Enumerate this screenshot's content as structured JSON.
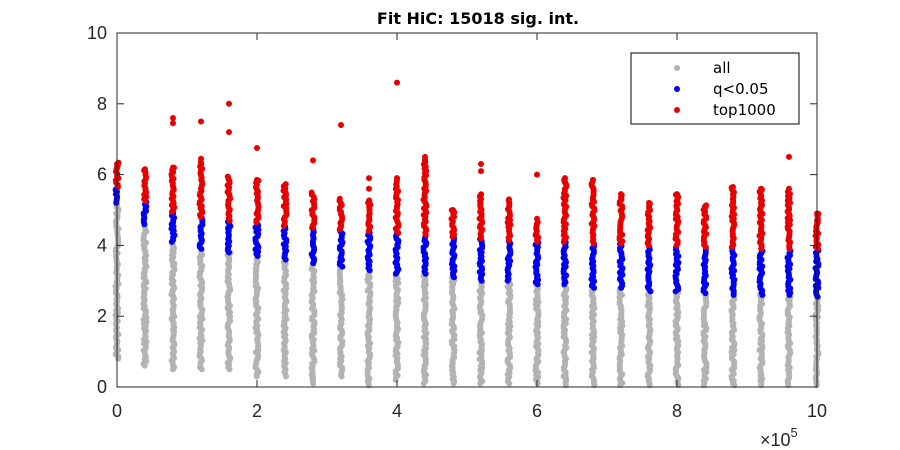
{
  "chart_data": {
    "type": "scatter",
    "title": "Fit HiC: 15018 sig. int.",
    "xlabel": "",
    "ylabel": "",
    "xlim": [
      0,
      1000000
    ],
    "ylim": [
      0,
      10
    ],
    "x_exponent_label": {
      "base": "×10",
      "exponent": "5"
    },
    "xticks": [
      0,
      200000,
      400000,
      600000,
      800000,
      1000000
    ],
    "xtick_labels": [
      "0",
      "2",
      "4",
      "6",
      "8",
      "10"
    ],
    "yticks": [
      0,
      2,
      4,
      6,
      8,
      10
    ],
    "ytick_labels": [
      "0",
      "2",
      "4",
      "6",
      "8",
      "10"
    ],
    "grid": false,
    "legend_position": "top-right",
    "x_positions": [
      0,
      40000,
      80000,
      120000,
      160000,
      200000,
      240000,
      280000,
      320000,
      360000,
      400000,
      440000,
      480000,
      520000,
      560000,
      600000,
      640000,
      680000,
      720000,
      760000,
      800000,
      840000,
      880000,
      920000,
      960000,
      1000000
    ],
    "series": [
      {
        "name": "all",
        "color": "#b3b3b3",
        "column_ranges": [
          [
            0.8,
            5.2
          ],
          [
            0.6,
            4.6
          ],
          [
            0.5,
            4.1
          ],
          [
            0.5,
            3.9
          ],
          [
            0.5,
            3.8
          ],
          [
            0.3,
            3.7
          ],
          [
            0.3,
            3.6
          ],
          [
            0.1,
            3.5
          ],
          [
            0.3,
            3.4
          ],
          [
            0.05,
            3.3
          ],
          [
            0.2,
            3.2
          ],
          [
            0.1,
            3.2
          ],
          [
            0.1,
            3.1
          ],
          [
            0.1,
            3.0
          ],
          [
            0.1,
            3.0
          ],
          [
            0.1,
            2.9
          ],
          [
            0.05,
            2.9
          ],
          [
            0.05,
            2.8
          ],
          [
            0.05,
            2.8
          ],
          [
            0.05,
            2.7
          ],
          [
            0.05,
            2.7
          ],
          [
            0.05,
            2.65
          ],
          [
            0.05,
            2.6
          ],
          [
            0.05,
            2.6
          ],
          [
            0.05,
            2.6
          ],
          [
            0.05,
            2.55
          ]
        ]
      },
      {
        "name": "q<0.05",
        "color": "#0000ee",
        "column_ranges": [
          [
            5.2,
            5.65
          ],
          [
            4.6,
            5.25
          ],
          [
            4.1,
            4.95
          ],
          [
            3.9,
            4.8
          ],
          [
            3.8,
            4.7
          ],
          [
            3.7,
            4.65
          ],
          [
            3.6,
            4.55
          ],
          [
            3.5,
            4.5
          ],
          [
            3.4,
            4.45
          ],
          [
            3.3,
            4.4
          ],
          [
            3.2,
            4.35
          ],
          [
            3.2,
            4.3
          ],
          [
            3.1,
            4.25
          ],
          [
            3.0,
            4.2
          ],
          [
            3.0,
            4.15
          ],
          [
            2.9,
            4.1
          ],
          [
            2.9,
            4.1
          ],
          [
            2.8,
            4.05
          ],
          [
            2.8,
            4.05
          ],
          [
            2.7,
            4.0
          ],
          [
            2.7,
            4.0
          ],
          [
            2.65,
            3.95
          ],
          [
            2.6,
            3.95
          ],
          [
            2.6,
            3.9
          ],
          [
            2.6,
            3.9
          ],
          [
            2.55,
            3.9
          ]
        ]
      },
      {
        "name": "top1000",
        "color": "#e60000",
        "column_ranges": [
          [
            5.65,
            6.35
          ],
          [
            5.25,
            6.15
          ],
          [
            4.95,
            6.2
          ],
          [
            4.8,
            6.4
          ],
          [
            4.7,
            5.95
          ],
          [
            4.65,
            5.85
          ],
          [
            4.55,
            5.75
          ],
          [
            4.5,
            5.5
          ],
          [
            4.45,
            5.35
          ],
          [
            4.4,
            5.3
          ],
          [
            4.35,
            5.9
          ],
          [
            4.3,
            6.45
          ],
          [
            4.25,
            5.0
          ],
          [
            4.2,
            5.5
          ],
          [
            4.15,
            5.3
          ],
          [
            4.1,
            4.7
          ],
          [
            4.1,
            5.9
          ],
          [
            4.05,
            5.85
          ],
          [
            4.05,
            5.45
          ],
          [
            4.0,
            5.2
          ],
          [
            4.0,
            5.45
          ],
          [
            3.95,
            5.15
          ],
          [
            3.95,
            5.65
          ],
          [
            3.9,
            5.6
          ],
          [
            3.9,
            5.55
          ],
          [
            3.9,
            4.9
          ]
        ],
        "outliers": [
          [
            0,
            6.3
          ],
          [
            0,
            6.2
          ],
          [
            40000,
            6.15
          ],
          [
            80000,
            7.6
          ],
          [
            80000,
            7.45
          ],
          [
            80000,
            6.2
          ],
          [
            120000,
            7.5
          ],
          [
            120000,
            6.45
          ],
          [
            160000,
            8.0
          ],
          [
            160000,
            7.2
          ],
          [
            200000,
            6.75
          ],
          [
            200000,
            5.85
          ],
          [
            240000,
            5.7
          ],
          [
            280000,
            6.4
          ],
          [
            320000,
            7.4
          ],
          [
            360000,
            5.9
          ],
          [
            360000,
            5.6
          ],
          [
            400000,
            8.6
          ],
          [
            400000,
            5.9
          ],
          [
            440000,
            6.5
          ],
          [
            440000,
            6.4
          ],
          [
            480000,
            5.0
          ],
          [
            520000,
            6.3
          ],
          [
            520000,
            6.1
          ],
          [
            560000,
            5.3
          ],
          [
            600000,
            6.0
          ],
          [
            600000,
            4.75
          ],
          [
            640000,
            5.9
          ],
          [
            640000,
            5.8
          ],
          [
            680000,
            5.85
          ],
          [
            680000,
            5.3
          ],
          [
            720000,
            5.45
          ],
          [
            760000,
            5.2
          ],
          [
            800000,
            5.45
          ],
          [
            840000,
            5.1
          ],
          [
            880000,
            5.65
          ],
          [
            920000,
            5.6
          ],
          [
            920000,
            5.1
          ],
          [
            960000,
            6.5
          ],
          [
            960000,
            5.6
          ],
          [
            1000000,
            4.9
          ],
          [
            1000000,
            4.7
          ]
        ]
      }
    ]
  }
}
